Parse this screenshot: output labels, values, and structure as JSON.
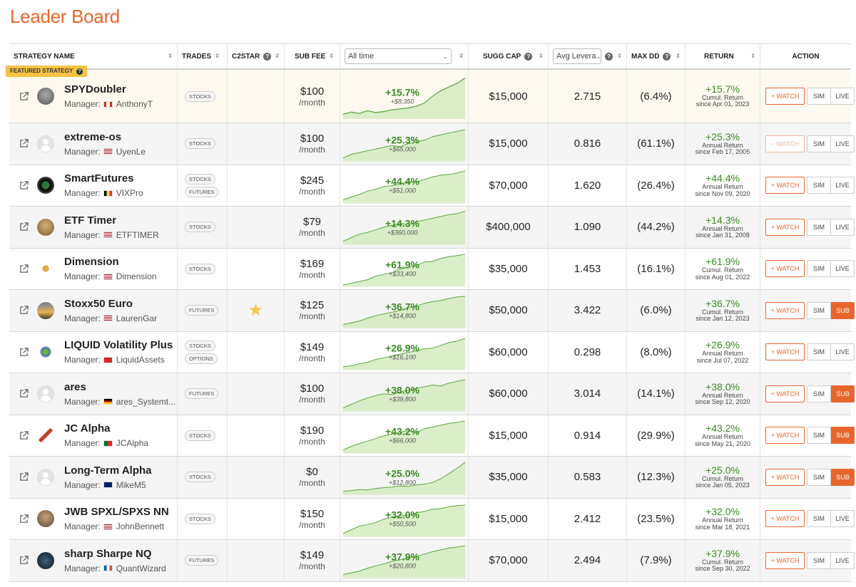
{
  "title": "Leader Board",
  "colors": {
    "accent": "#e8662c",
    "positive": "#3a8a22",
    "featured_bg": "#fdf9ef",
    "badge": "#f5c243"
  },
  "headers": {
    "strategy_name": "STRATEGY NAME",
    "trades": "TRADES",
    "c2star": "C2STAR",
    "sub_fee": "SUB FEE",
    "period_select": "All time",
    "sugg_cap": "SUGG CAP",
    "leverage_select": "Avg Levera",
    "max_dd": "MAX DD",
    "return": "RETURN",
    "action": "ACTION"
  },
  "featured_label": "FEATURED STRATEGY",
  "labels": {
    "manager_prefix": "Manager:",
    "per_month": "/month",
    "watch": "+ WATCH",
    "watch_disabled": "– WATCH",
    "sim": "SIM",
    "live": "LIVE",
    "sub": "SUB"
  },
  "rows": [
    {
      "name": "SPYDoubler",
      "manager": "AnthonyT",
      "flag": "ca",
      "tags": [
        "STOCKS"
      ],
      "c2star": false,
      "fee": "$100",
      "pct": "+15.7%",
      "abs": "+$8,350",
      "sugg_cap": "$15,000",
      "leverage": "2.715",
      "max_dd": "(6.4%)",
      "ret": "+15.7%",
      "ret_kind": "Cumul. Return",
      "since": "since Apr 01, 2023",
      "action": "LIVE",
      "watch_disabled": false,
      "avatar": "photo-gray",
      "spark": [
        0.1,
        0.15,
        0.12,
        0.18,
        0.14,
        0.16,
        0.2,
        0.22,
        0.24,
        0.28,
        0.35,
        0.5,
        0.62,
        0.7,
        0.78,
        0.9
      ]
    },
    {
      "name": "extreme-os",
      "manager": "UyenLe",
      "flag": "us",
      "tags": [
        "STOCKS"
      ],
      "c2star": false,
      "fee": "$100",
      "pct": "+25.3%",
      "abs": "+$65,000",
      "sugg_cap": "$15,000",
      "leverage": "0.816",
      "max_dd": "(61.1%)",
      "ret": "+25.3%",
      "ret_kind": "Annual Return",
      "since": "since Feb 17, 2005",
      "action": "LIVE",
      "watch_disabled": true,
      "avatar": "gray",
      "spark": [
        0.1,
        0.2,
        0.25,
        0.3,
        0.35,
        0.4,
        0.45,
        0.42,
        0.5,
        0.55,
        0.6,
        0.7,
        0.75,
        0.8,
        0.85,
        0.9
      ]
    },
    {
      "name": "SmartFutures",
      "manager": "VIXPro",
      "flag": "be",
      "tags": [
        "STOCKS",
        "FUTURES"
      ],
      "c2star": false,
      "fee": "$245",
      "pct": "+44.4%",
      "abs": "+$51,000",
      "sugg_cap": "$70,000",
      "leverage": "1.620",
      "max_dd": "(26.4%)",
      "ret": "+44.4%",
      "ret_kind": "Annual Return",
      "since": "since Nov 09, 2020",
      "action": "LIVE",
      "watch_disabled": false,
      "avatar": "dark-ring",
      "spark": [
        0.1,
        0.18,
        0.25,
        0.35,
        0.4,
        0.48,
        0.5,
        0.55,
        0.62,
        0.6,
        0.68,
        0.75,
        0.8,
        0.82,
        0.86,
        0.92
      ]
    },
    {
      "name": "ETF Timer",
      "manager": "ETFTIMER",
      "flag": "us",
      "tags": [
        "STOCKS"
      ],
      "c2star": false,
      "fee": "$79",
      "pct": "+14.3%",
      "abs": "+$360,000",
      "sugg_cap": "$400,000",
      "leverage": "1.090",
      "max_dd": "(44.2%)",
      "ret": "+14.3%",
      "ret_kind": "Annual Return",
      "since": "since Jan 31, 2008",
      "action": "LIVE",
      "watch_disabled": false,
      "avatar": "photo-tan",
      "spark": [
        0.1,
        0.2,
        0.3,
        0.35,
        0.42,
        0.5,
        0.55,
        0.6,
        0.58,
        0.65,
        0.7,
        0.75,
        0.8,
        0.85,
        0.88,
        0.95
      ]
    },
    {
      "name": "Dimension",
      "manager": "Dimension",
      "flag": "us",
      "tags": [
        "STOCKS"
      ],
      "c2star": false,
      "fee": "$169",
      "pct": "+61.9%",
      "abs": "+$33,400",
      "sugg_cap": "$35,000",
      "leverage": "1.453",
      "max_dd": "(16.1%)",
      "ret": "+61.9%",
      "ret_kind": "Cumul. Return",
      "since": "since Aug 01, 2022",
      "action": "LIVE",
      "watch_disabled": false,
      "avatar": "logo-sun",
      "spark": [
        0.05,
        0.1,
        0.15,
        0.2,
        0.3,
        0.35,
        0.4,
        0.5,
        0.55,
        0.6,
        0.7,
        0.72,
        0.8,
        0.85,
        0.88,
        0.92
      ]
    },
    {
      "name": "Stoxx50 Euro",
      "manager": "LaurenGar",
      "flag": "us",
      "tags": [
        "FUTURES"
      ],
      "c2star": true,
      "fee": "$125",
      "pct": "+36.7%",
      "abs": "+$14,800",
      "sugg_cap": "$50,000",
      "leverage": "3.422",
      "max_dd": "(6.0%)",
      "ret": "+36.7%",
      "ret_kind": "Cumul. Return",
      "since": "since Jan 12, 2023",
      "action": "SUB",
      "watch_disabled": false,
      "avatar": "photo-sunset",
      "spark": [
        0.1,
        0.15,
        0.2,
        0.28,
        0.35,
        0.4,
        0.45,
        0.5,
        0.58,
        0.62,
        0.7,
        0.75,
        0.78,
        0.84,
        0.88,
        0.9
      ]
    },
    {
      "name": "LIQUID Volatility Plus",
      "manager": "LiquidAssets",
      "flag": "ch",
      "tags": [
        "STOCKS",
        "OPTIONS"
      ],
      "c2star": false,
      "fee": "$149",
      "pct": "+26.9%",
      "abs": "+$16,100",
      "sugg_cap": "$60,000",
      "leverage": "0.298",
      "max_dd": "(8.0%)",
      "ret": "+26.9%",
      "ret_kind": "Annual Return",
      "since": "since Jul 07, 2022",
      "action": "LIVE",
      "watch_disabled": false,
      "avatar": "logo-liquid",
      "spark": [
        0.1,
        0.12,
        0.18,
        0.22,
        0.3,
        0.35,
        0.4,
        0.45,
        0.5,
        0.55,
        0.6,
        0.62,
        0.7,
        0.78,
        0.82,
        0.9
      ]
    },
    {
      "name": "ares",
      "manager": "ares_Systemt...",
      "flag": "de",
      "tags": [
        "FUTURES"
      ],
      "c2star": false,
      "fee": "$100",
      "pct": "+38.0%",
      "abs": "+$39,800",
      "sugg_cap": "$60,000",
      "leverage": "3.014",
      "max_dd": "(14.1%)",
      "ret": "+38.0%",
      "ret_kind": "Annual Return",
      "since": "since Sep 12, 2020",
      "action": "SUB",
      "watch_disabled": false,
      "avatar": "gray",
      "spark": [
        0.1,
        0.2,
        0.3,
        0.38,
        0.45,
        0.5,
        0.48,
        0.55,
        0.6,
        0.65,
        0.7,
        0.75,
        0.72,
        0.8,
        0.85,
        0.9
      ]
    },
    {
      "name": "JC Alpha",
      "manager": "JCAlpha",
      "flag": "pt",
      "tags": [
        "STOCKS"
      ],
      "c2star": false,
      "fee": "$190",
      "pct": "+43.2%",
      "abs": "+$66,000",
      "sugg_cap": "$15,000",
      "leverage": "0.914",
      "max_dd": "(29.9%)",
      "ret": "+43.2%",
      "ret_kind": "Annual Return",
      "since": "since May 21, 2020",
      "action": "SUB",
      "watch_disabled": false,
      "avatar": "logo-jc",
      "spark": [
        0.1,
        0.2,
        0.28,
        0.35,
        0.42,
        0.5,
        0.55,
        0.6,
        0.65,
        0.58,
        0.7,
        0.75,
        0.8,
        0.85,
        0.88,
        0.92
      ]
    },
    {
      "name": "Long-Term Alpha",
      "manager": "MikeM5",
      "flag": "gb",
      "tags": [
        "STOCKS"
      ],
      "c2star": false,
      "fee": "$0",
      "pct": "+25.0%",
      "abs": "+$12,800",
      "sugg_cap": "$35,000",
      "leverage": "0.583",
      "max_dd": "(12.3%)",
      "ret": "+25.0%",
      "ret_kind": "Cumul. Return",
      "since": "since Jan 05, 2023",
      "action": "SUB",
      "watch_disabled": false,
      "avatar": "gray",
      "spark": [
        0.1,
        0.12,
        0.15,
        0.14,
        0.18,
        0.2,
        0.22,
        0.25,
        0.24,
        0.28,
        0.3,
        0.35,
        0.45,
        0.6,
        0.75,
        0.92
      ]
    },
    {
      "name": "JWB SPXL/SPXS NN",
      "manager": "JohnBennett",
      "flag": "us",
      "tags": [
        "STOCKS"
      ],
      "c2star": false,
      "fee": "$150",
      "pct": "+32.0%",
      "abs": "+$50,500",
      "sugg_cap": "$15,000",
      "leverage": "2.412",
      "max_dd": "(23.5%)",
      "ret": "+32.0%",
      "ret_kind": "Annual Return",
      "since": "since Mar 18, 2021",
      "action": "LIVE",
      "watch_disabled": false,
      "avatar": "photo-man",
      "spark": [
        0.1,
        0.2,
        0.3,
        0.35,
        0.4,
        0.5,
        0.55,
        0.6,
        0.62,
        0.68,
        0.72,
        0.78,
        0.8,
        0.85,
        0.88,
        0.9
      ]
    },
    {
      "name": "sharp Sharpe NQ",
      "manager": "QuantWizard",
      "flag": "fr",
      "tags": [
        "FUTURES"
      ],
      "c2star": false,
      "fee": "$149",
      "pct": "+37.9%",
      "abs": "+$20,800",
      "sugg_cap": "$70,000",
      "leverage": "2.494",
      "max_dd": "(7.9%)",
      "ret": "+37.9%",
      "ret_kind": "Cumul. Return",
      "since": "since Sep 30, 2022",
      "action": "LIVE",
      "watch_disabled": false,
      "avatar": "photo-dark",
      "spark": [
        0.1,
        0.15,
        0.2,
        0.28,
        0.35,
        0.4,
        0.48,
        0.52,
        0.58,
        0.62,
        0.68,
        0.75,
        0.8,
        0.85,
        0.88,
        0.92
      ]
    }
  ]
}
